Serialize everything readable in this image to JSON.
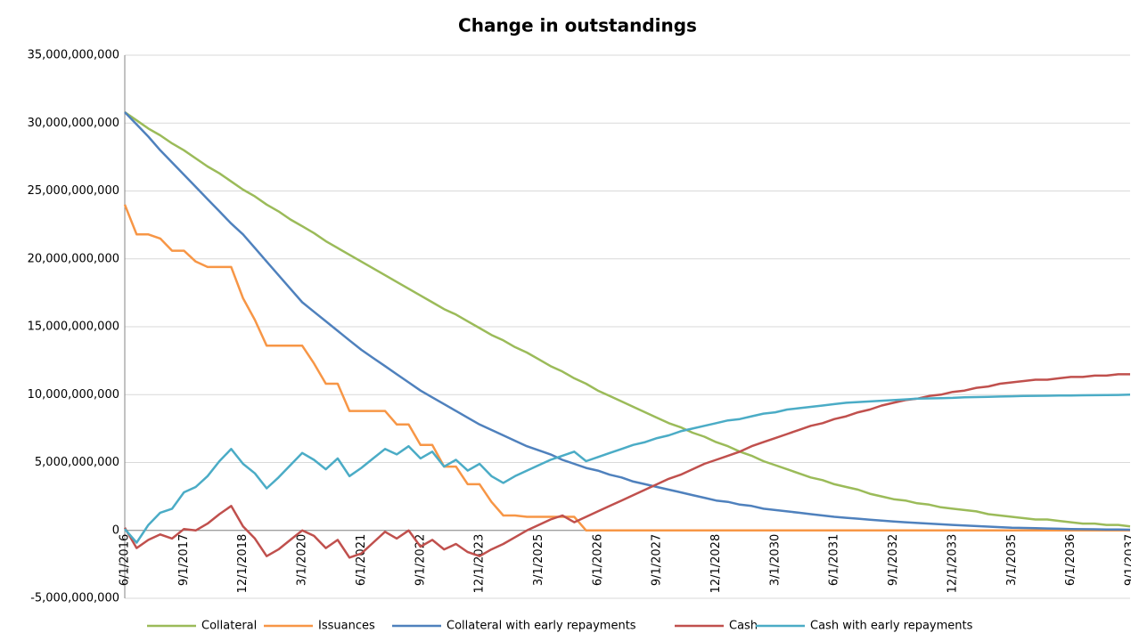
{
  "chart_data": {
    "type": "line",
    "title": "Change in outstandings",
    "categories": [
      "6/1/2016",
      null,
      null,
      null,
      null,
      "9/1/2017",
      null,
      null,
      null,
      null,
      "12/1/2018",
      null,
      null,
      null,
      null,
      "3/1/2020",
      null,
      null,
      null,
      null,
      "6/1/2021",
      null,
      null,
      null,
      null,
      "9/1/2022",
      null,
      null,
      null,
      null,
      "12/1/2023",
      null,
      null,
      null,
      null,
      "3/1/2025",
      null,
      null,
      null,
      null,
      "6/1/2026",
      null,
      null,
      null,
      null,
      "9/1/2027",
      null,
      null,
      null,
      null,
      "12/1/2028",
      null,
      null,
      null,
      null,
      "3/1/2030",
      null,
      null,
      null,
      null,
      "6/1/2031",
      null,
      null,
      null,
      null,
      "9/1/2032",
      null,
      null,
      null,
      null,
      "12/1/2033",
      null,
      null,
      null,
      null,
      "3/1/2035",
      null,
      null,
      null,
      null,
      "6/1/2036",
      null,
      null,
      null,
      null,
      "9/1/2037"
    ],
    "ylim": [
      -5000000000.0,
      35000000000.0
    ],
    "yticks": [
      {
        "value": -5000000000.0,
        "label": "-5,000,000,000"
      },
      0,
      {
        "value": 5000000000.0,
        "label": "5,000,000,000"
      },
      {
        "value": 10000000000.0,
        "label": "10,000,000,000"
      },
      {
        "value": 15000000000.0,
        "label": "15,000,000,000"
      },
      {
        "value": 20000000000.0,
        "label": "20,000,000,000"
      },
      {
        "value": 25000000000.0,
        "label": "25,000,000,000"
      },
      {
        "value": 30000000000.0,
        "label": "30,000,000,000"
      },
      {
        "value": 35000000000.0,
        "label": "35,000,000,000"
      }
    ],
    "grid": true,
    "legend": "bottom",
    "series": [
      {
        "name": "Collateral",
        "color": "#9bbb59",
        "values": [
          30800000000.0,
          30200000000.0,
          29600000000.0,
          29100000000.0,
          28500000000.0,
          28000000000.0,
          27400000000.0,
          26800000000.0,
          26300000000.0,
          25700000000.0,
          25100000000.0,
          24600000000.0,
          24000000000.0,
          23500000000.0,
          22900000000.0,
          22400000000.0,
          21900000000.0,
          21300000000.0,
          20800000000.0,
          20300000000.0,
          19800000000.0,
          19300000000.0,
          18800000000.0,
          18300000000.0,
          17800000000.0,
          17300000000.0,
          16800000000.0,
          16300000000.0,
          15900000000.0,
          15400000000.0,
          14900000000.0,
          14400000000.0,
          14000000000.0,
          13500000000.0,
          13100000000.0,
          12600000000.0,
          12100000000.0,
          11700000000.0,
          11200000000.0,
          10800000000.0,
          10300000000.0,
          9900000000.0,
          9500000000.0,
          9100000000.0,
          8700000000.0,
          8300000000.0,
          7900000000.0,
          7600000000.0,
          7200000000.0,
          6900000000.0,
          6500000000.0,
          6200000000.0,
          5800000000.0,
          5500000000.0,
          5100000000.0,
          4800000000.0,
          4500000000.0,
          4200000000.0,
          3900000000.0,
          3700000000.0,
          3400000000.0,
          3200000000.0,
          3000000000.0,
          2700000000.0,
          2500000000.0,
          2300000000.0,
          2200000000.0,
          2000000000.0,
          1900000000.0,
          1700000000.0,
          1600000000.0,
          1500000000.0,
          1400000000.0,
          1200000000.0,
          1100000000.0,
          1000000000.0,
          900000000.0,
          800000000.0,
          800000000.0,
          700000000.0,
          600000000.0,
          500000000.0,
          500000000.0,
          400000000.0,
          400000000.0,
          300000000.0
        ]
      },
      {
        "name": "Issuances",
        "color": "#f79646",
        "values": [
          24000000000.0,
          21800000000.0,
          21800000000.0,
          21500000000.0,
          20600000000.0,
          20600000000.0,
          19800000000.0,
          19400000000.0,
          19400000000.0,
          19400000000.0,
          17100000000.0,
          15500000000.0,
          13600000000.0,
          13600000000.0,
          13600000000.0,
          13600000000.0,
          12300000000.0,
          10800000000.0,
          10800000000.0,
          8800000000.0,
          8800000000.0,
          8800000000.0,
          8800000000.0,
          7800000000.0,
          7800000000.0,
          6300000000.0,
          6300000000.0,
          4700000000.0,
          4700000000.0,
          3400000000.0,
          3400000000.0,
          2100000000.0,
          1100000000.0,
          1100000000.0,
          1000000000.0,
          1000000000.0,
          1000000000.0,
          1000000000.0,
          1000000000.0,
          0,
          0,
          0,
          0,
          0,
          0,
          0,
          0,
          0,
          0,
          0,
          0,
          0,
          0,
          0,
          0,
          0,
          0,
          0,
          0,
          0,
          0,
          0,
          0,
          0,
          0,
          0,
          0,
          0,
          0,
          0,
          0,
          0,
          0,
          0,
          0,
          0,
          0,
          0,
          0,
          0,
          0,
          0,
          0,
          0,
          0,
          0
        ]
      },
      {
        "name": "Collateral with early repayments",
        "color": "#4f81bd",
        "values": [
          30800000000.0,
          29900000000.0,
          29000000000.0,
          28000000000.0,
          27100000000.0,
          26200000000.0,
          25300000000.0,
          24400000000.0,
          23500000000.0,
          22600000000.0,
          21800000000.0,
          20800000000.0,
          19800000000.0,
          18800000000.0,
          17800000000.0,
          16800000000.0,
          16100000000.0,
          15400000000.0,
          14700000000.0,
          14000000000.0,
          13300000000.0,
          12700000000.0,
          12100000000.0,
          11500000000.0,
          10900000000.0,
          10300000000.0,
          9800000000.0,
          9300000000.0,
          8800000000.0,
          8300000000.0,
          7800000000.0,
          7400000000.0,
          7000000000.0,
          6600000000.0,
          6200000000.0,
          5900000000.0,
          5600000000.0,
          5200000000.0,
          4900000000.0,
          4600000000.0,
          4400000000.0,
          4100000000.0,
          3900000000.0,
          3600000000.0,
          3400000000.0,
          3200000000.0,
          3000000000.0,
          2800000000.0,
          2600000000.0,
          2400000000.0,
          2200000000.0,
          2100000000.0,
          1900000000.0,
          1800000000.0,
          1600000000.0,
          1500000000.0,
          1400000000.0,
          1300000000.0,
          1200000000.0,
          1100000000.0,
          1000000000.0,
          930000000.0,
          860000000.0,
          790000000.0,
          720000000.0,
          650000000.0,
          600000000.0,
          550000000.0,
          500000000.0,
          450000000.0,
          400000000.0,
          360000000.0,
          320000000.0,
          280000000.0,
          240000000.0,
          200000000.0,
          180000000.0,
          160000000.0,
          140000000.0,
          120000000.0,
          100000000.0,
          90000000.0,
          80000000.0,
          70000000.0,
          60000000.0,
          50000000.0
        ]
      },
      {
        "name": "Cash",
        "color": "#c0504d",
        "values": [
          200000000.0,
          -1300000000.0,
          -700000000.0,
          -300000000.0,
          -600000000.0,
          100000000.0,
          0.0,
          500000000.0,
          1200000000.0,
          1800000000.0,
          300000000.0,
          -600000000.0,
          -1900000000.0,
          -1400000000.0,
          -700000000.0,
          0.0,
          -400000000.0,
          -1300000000.0,
          -700000000.0,
          -2000000000.0,
          -1700000000.0,
          -900000000.0,
          -100000000.0,
          -600000000.0,
          0.0,
          -1200000000.0,
          -700000000.0,
          -1400000000.0,
          -1000000000.0,
          -1600000000.0,
          -1900000000.0,
          -1400000000.0,
          -1000000000.0,
          -500000000.0,
          0.0,
          400000000.0,
          800000000.0,
          1100000000.0,
          600000000.0,
          1000000000.0,
          1400000000.0,
          1800000000.0,
          2200000000.0,
          2600000000.0,
          3000000000.0,
          3400000000.0,
          3800000000.0,
          4100000000.0,
          4500000000.0,
          4900000000.0,
          5200000000.0,
          5500000000.0,
          5800000000.0,
          6200000000.0,
          6500000000.0,
          6800000000.0,
          7100000000.0,
          7400000000.0,
          7700000000.0,
          7900000000.0,
          8200000000.0,
          8400000000.0,
          8700000000.0,
          8900000000.0,
          9200000000.0,
          9400000000.0,
          9600000000.0,
          9700000000.0,
          9900000000.0,
          10000000000.0,
          10200000000.0,
          10300000000.0,
          10500000000.0,
          10600000000.0,
          10800000000.0,
          10900000000.0,
          11000000000.0,
          11100000000.0,
          11100000000.0,
          11200000000.0,
          11300000000.0,
          11300000000.0,
          11400000000.0,
          11400000000.0,
          11500000000.0,
          11500000000.0
        ]
      },
      {
        "name": "Cash with early repayments",
        "color": "#4bacc6",
        "values": [
          100000000.0,
          -900000000.0,
          400000000.0,
          1300000000.0,
          1600000000.0,
          2800000000.0,
          3200000000.0,
          4000000000.0,
          5100000000.0,
          6000000000.0,
          4900000000.0,
          4200000000.0,
          3100000000.0,
          3900000000.0,
          4800000000.0,
          5700000000.0,
          5200000000.0,
          4500000000.0,
          5300000000.0,
          4000000000.0,
          4600000000.0,
          5300000000.0,
          6000000000.0,
          5600000000.0,
          6200000000.0,
          5300000000.0,
          5800000000.0,
          4700000000.0,
          5200000000.0,
          4400000000.0,
          4900000000.0,
          4000000000.0,
          3500000000.0,
          4000000000.0,
          4400000000.0,
          4800000000.0,
          5200000000.0,
          5500000000.0,
          5800000000.0,
          5100000000.0,
          5400000000.0,
          5700000000.0,
          6000000000.0,
          6300000000.0,
          6500000000.0,
          6800000000.0,
          7000000000.0,
          7300000000.0,
          7500000000.0,
          7700000000.0,
          7900000000.0,
          8100000000.0,
          8200000000.0,
          8400000000.0,
          8600000000.0,
          8700000000.0,
          8900000000.0,
          9000000000.0,
          9100000000.0,
          9200000000.0,
          9300000000.0,
          9400000000.0,
          9450000000.0,
          9500000000.0,
          9550000000.0,
          9600000000.0,
          9650000000.0,
          9700000000.0,
          9720000000.0,
          9740000000.0,
          9760000000.0,
          9800000000.0,
          9820000000.0,
          9840000000.0,
          9860000000.0,
          9880000000.0,
          9900000000.0,
          9910000000.0,
          9920000000.0,
          9930000000.0,
          9940000000.0,
          9950000000.0,
          9960000000.0,
          9970000000.0,
          9980000000.0,
          10000000000.0
        ]
      }
    ]
  }
}
